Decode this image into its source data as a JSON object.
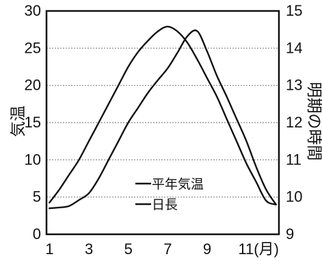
{
  "chart_data": {
    "type": "line",
    "x": [
      1,
      1.5,
      2,
      2.5,
      3,
      3.5,
      4,
      4.5,
      5,
      5.5,
      6,
      6.5,
      7,
      7.5,
      8,
      8.5,
      9,
      9.5,
      10,
      10.5,
      11,
      11.5,
      12,
      12.5
    ],
    "xticks": [
      1,
      3,
      5,
      7,
      9,
      11
    ],
    "xtick_labels": [
      "1",
      "3",
      "5",
      "7",
      "9",
      "11(月)"
    ],
    "xlim": [
      0.85,
      12.65
    ],
    "ylabel_left": "気温",
    "ylabel_right": "明期の時間",
    "ylim_left": [
      0,
      30
    ],
    "ylim_right": [
      9,
      15
    ],
    "yticks_left": [
      0,
      5,
      10,
      15,
      20,
      25,
      30
    ],
    "yticks_right": [
      9,
      10,
      11,
      12,
      13,
      14,
      15
    ],
    "grid": "horizontal",
    "legend_placement": "bottom-center",
    "series": [
      {
        "name": "平年気温",
        "axis": "left",
        "values": [
          3.5,
          3.6,
          3.8,
          4.6,
          5.5,
          7.5,
          10.0,
          12.5,
          15.0,
          17.0,
          19.0,
          20.7,
          22.3,
          24.4,
          26.6,
          27.3,
          24.6,
          21.3,
          18.5,
          15.5,
          12.5,
          9.0,
          6.0,
          4.0
        ]
      },
      {
        "name": "日長",
        "axis": "right",
        "values": [
          9.85,
          10.2,
          10.6,
          11.0,
          11.5,
          12.0,
          12.5,
          13.0,
          13.5,
          13.9,
          14.2,
          14.45,
          14.58,
          14.45,
          14.15,
          13.7,
          13.2,
          12.7,
          12.1,
          11.5,
          10.9,
          10.4,
          9.9,
          9.8
        ]
      }
    ],
    "colors": {
      "line": "#111111",
      "grid": "#888888",
      "frame": "#111111"
    }
  }
}
